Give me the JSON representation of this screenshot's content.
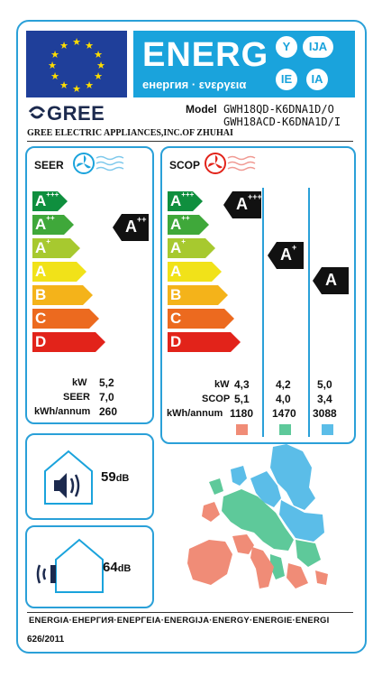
{
  "header": {
    "energy_word": "ENERG",
    "energy_sub": "енергия · ενεργεια",
    "language_marks": [
      "Y",
      "IJA",
      "IE",
      "IA"
    ]
  },
  "supplier": {
    "brand": "GREE",
    "model_label": "Model",
    "models": [
      "GWH18QD-K6DNA1D/O",
      "GWH18ACD-K6DNA1D/I"
    ],
    "company": "GREE ELECTRIC APPLIANCES,INC.OF ZHUHAI"
  },
  "scale_classes": [
    {
      "base": "A",
      "sup": "+++",
      "color": "#0f8f3e"
    },
    {
      "base": "A",
      "sup": "++",
      "color": "#3fa83a"
    },
    {
      "base": "A",
      "sup": "+",
      "color": "#a7c92f"
    },
    {
      "base": "A",
      "sup": "",
      "color": "#f1e219"
    },
    {
      "base": "B",
      "sup": "",
      "color": "#f4b31a"
    },
    {
      "base": "C",
      "sup": "",
      "color": "#ec6a1f"
    },
    {
      "base": "D",
      "sup": "",
      "color": "#e2231a"
    }
  ],
  "seer": {
    "title": "SEER",
    "rating": {
      "base": "A",
      "sup": "++"
    },
    "rows": [
      {
        "label": "kW",
        "value": "5,2"
      },
      {
        "label": "SEER",
        "value": "7,0"
      },
      {
        "label": "kWh/annum",
        "value": "260"
      }
    ]
  },
  "scop": {
    "title": "SCOP",
    "ratings": [
      {
        "base": "A",
        "sup": "+++"
      },
      {
        "base": "A",
        "sup": "+"
      },
      {
        "base": "A",
        "sup": ""
      }
    ],
    "labels": [
      "kW",
      "SCOP",
      "kWh/annum"
    ],
    "columns": [
      {
        "kw": "4,3",
        "scop": "5,1",
        "annual": "1180",
        "color": "#f08c77"
      },
      {
        "kw": "4,2",
        "scop": "4,0",
        "annual": "1470",
        "color": "#5ec99a"
      },
      {
        "kw": "5,0",
        "scop": "3,4",
        "annual": "3088",
        "color": "#5bbde8"
      }
    ]
  },
  "noise": {
    "indoor_value": "59",
    "outdoor_value": "64",
    "unit": "dB"
  },
  "footer": {
    "languages": "ENERGIA·ЕНЕРГИЯ·ΕΝΕΡΓΕΙΑ·ENERGIJA·ENERGY·ENERGIE·ENERGI",
    "regulation": "626/2011"
  }
}
